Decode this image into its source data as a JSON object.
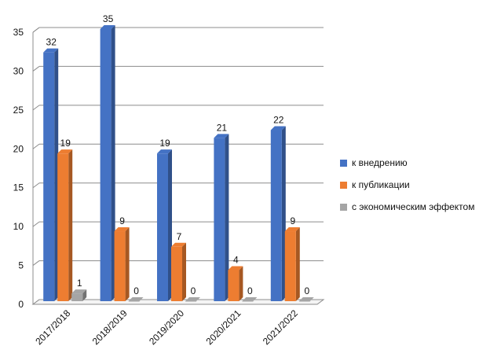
{
  "chart_data": {
    "type": "bar",
    "title": "",
    "xlabel": "",
    "ylabel": "",
    "categories": [
      "2017/2018",
      "2018/2019",
      "2019/2020",
      "2020/2021",
      "2021/2022"
    ],
    "series": [
      {
        "name": "к внедрению",
        "values": [
          32,
          35,
          19,
          21,
          22
        ],
        "color": "#4472C4"
      },
      {
        "name": "к публикации",
        "values": [
          19,
          9,
          7,
          4,
          9
        ],
        "color": "#ED7D31"
      },
      {
        "name": "с экономическим эффектом",
        "values": [
          1,
          0,
          0,
          0,
          0
        ],
        "color": "#A5A5A5"
      }
    ],
    "ylim": [
      0,
      35
    ],
    "yticks": [
      "0",
      "5",
      "10",
      "15",
      "20",
      "25",
      "30",
      "35"
    ],
    "grid": true,
    "legend": "right",
    "style": "3d-column"
  }
}
